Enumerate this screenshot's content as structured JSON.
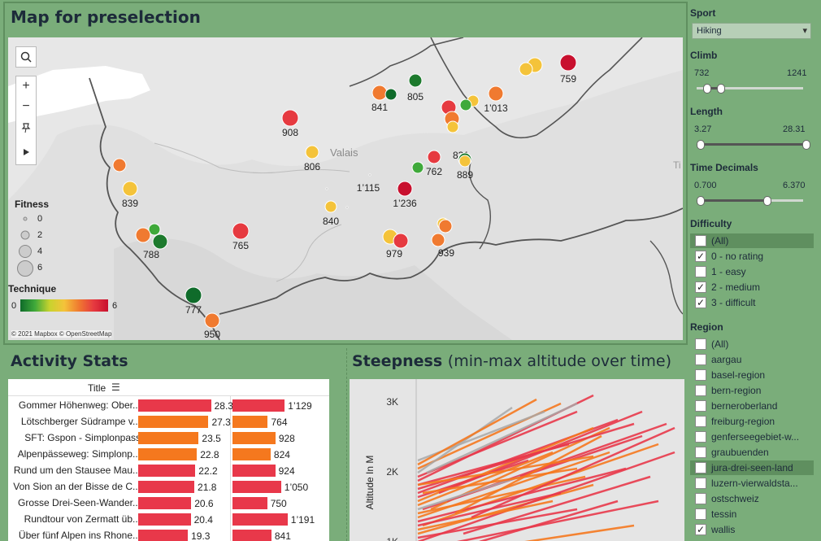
{
  "map_panel": {
    "title": "Map for preselection",
    "region_label": "Valais",
    "edge_label": "Ti",
    "attribution": "© 2021 Mapbox © OpenStreetMap",
    "fitness_legend": {
      "title": "Fitness",
      "values": [
        "0",
        "2",
        "4",
        "6"
      ]
    },
    "technique_legend": {
      "title": "Technique",
      "min": "0",
      "max": "6"
    },
    "controls": [
      "search-icon",
      "zoom-in-icon",
      "zoom-out-icon",
      "pin-icon",
      "play-icon"
    ],
    "labels": [
      "759",
      "805",
      "841",
      "1’013",
      "908",
      "831",
      "806",
      "762",
      "889",
      "839",
      "1’115",
      "1’236",
      "840",
      "765",
      "788",
      "939",
      "979",
      "777",
      "950"
    ]
  },
  "filters": {
    "sport": {
      "label": "Sport",
      "selected": "Hiking"
    },
    "climb": {
      "label": "Climb",
      "min": "732",
      "max": "1241"
    },
    "length": {
      "label": "Length",
      "min": "3.27",
      "max": "28.31"
    },
    "time_decimals": {
      "label": "Time Decimals",
      "min": "0.700",
      "max": "6.370"
    },
    "difficulty": {
      "label": "Difficulty",
      "options": [
        {
          "label": "(All)",
          "checked": false
        },
        {
          "label": "0 - no rating",
          "checked": true
        },
        {
          "label": "1 - easy",
          "checked": false
        },
        {
          "label": "2 - medium",
          "checked": true
        },
        {
          "label": "3 - difficult",
          "checked": true
        }
      ]
    },
    "region": {
      "label": "Region",
      "options": [
        {
          "label": "(All)",
          "checked": false
        },
        {
          "label": "aargau",
          "checked": false
        },
        {
          "label": "basel-region",
          "checked": false
        },
        {
          "label": "bern-region",
          "checked": false
        },
        {
          "label": "berneroberland",
          "checked": false
        },
        {
          "label": "freiburg-region",
          "checked": false
        },
        {
          "label": "genferseegebiet-w...",
          "checked": false
        },
        {
          "label": "graubuenden",
          "checked": false
        },
        {
          "label": "jura-drei-seen-land",
          "checked": false
        },
        {
          "label": "luzern-vierwaldsta...",
          "checked": false
        },
        {
          "label": "ostschweiz",
          "checked": false
        },
        {
          "label": "tessin",
          "checked": false
        },
        {
          "label": "wallis",
          "checked": true
        }
      ]
    }
  },
  "activity_stats": {
    "title": "Activity Stats",
    "column_header": "Title",
    "colors": {
      "red": "#e8384a",
      "orange": "#f5781e"
    },
    "rows": [
      {
        "title": "Gommer Höhenweg: Ober...",
        "length": 28.3,
        "length_label": "28.3",
        "climb": 1129,
        "climb_label": "1’129",
        "color": "red"
      },
      {
        "title": "Lötschberger Südrampe v...",
        "length": 27.3,
        "length_label": "27.3",
        "climb": 764,
        "climb_label": "764",
        "color": "orange"
      },
      {
        "title": "SFT:  Gspon - Simplonpass",
        "length": 23.5,
        "length_label": "23.5",
        "climb": 928,
        "climb_label": "928",
        "color": "orange"
      },
      {
        "title": "Alpenpässeweg: Simplonp...",
        "length": 22.8,
        "length_label": "22.8",
        "climb": 824,
        "climb_label": "824",
        "color": "orange"
      },
      {
        "title": "Rund um den Stausee Mau...",
        "length": 22.2,
        "length_label": "22.2",
        "climb": 924,
        "climb_label": "924",
        "color": "red"
      },
      {
        "title": "Von Sion an der Bisse de C...",
        "length": 21.8,
        "length_label": "21.8",
        "climb": 1050,
        "climb_label": "1’050",
        "color": "red"
      },
      {
        "title": "Grosse Drei-Seen-Wander...",
        "length": 20.6,
        "length_label": "20.6",
        "climb": 750,
        "climb_label": "750",
        "color": "red"
      },
      {
        "title": "Rundtour von Zermatt üb...",
        "length": 20.4,
        "length_label": "20.4",
        "climb": 1191,
        "climb_label": "1’191",
        "color": "red"
      },
      {
        "title": "Über fünf Alpen ins Rhone...",
        "length": 19.3,
        "length_label": "19.3",
        "climb": 841,
        "climb_label": "841",
        "color": "red"
      }
    ]
  },
  "steepness": {
    "title": "Steepness",
    "subtitle": "(min-max altitude over time)",
    "ylabel": "Altitude In M",
    "ticks": [
      "3K",
      "2K",
      "1K"
    ]
  },
  "chart_data": {
    "type": "line",
    "title": "Steepness (min-max altitude over time)",
    "ylabel": "Altitude In M",
    "yticks": [
      1000,
      2000,
      3000
    ],
    "colors": [
      "#e8384a",
      "#f5781e",
      "#a8a8a8"
    ]
  }
}
